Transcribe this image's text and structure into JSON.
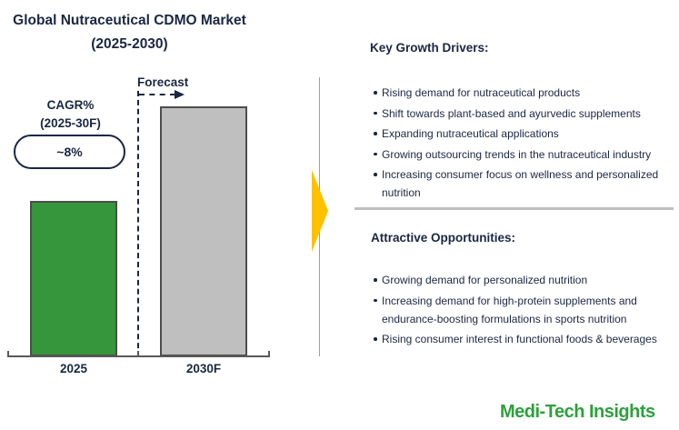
{
  "chart": {
    "title_line1": "Global Nutraceutical CDMO Market",
    "title_line2": "(2025-2030)",
    "cagr_label_line1": "CAGR%",
    "cagr_label_line2": "(2025-30F)",
    "cagr_value": "~8%",
    "forecast_label": "Forecast",
    "x_labels": [
      "2025",
      "2030F"
    ]
  },
  "chart_data": {
    "type": "bar",
    "title": "Global Nutraceutical CDMO Market (2025-2030)",
    "categories": [
      "2025",
      "2030F"
    ],
    "values": [
      62,
      100
    ],
    "y_scale": "relative bar heights; no numeric value labels or y-axis shown",
    "xlabel": "",
    "ylabel": "",
    "grid": false,
    "legend": false,
    "annotations": [
      "CAGR% (2025-30F): ~8%",
      "Forecast"
    ],
    "bar_colors": [
      "#35963B",
      "#BFBFBF"
    ]
  },
  "right_panel": {
    "sections": [
      {
        "heading": "Key Growth Drivers:",
        "bullets": [
          "Rising demand for nutraceutical products",
          "Shift towards plant-based and ayurvedic supplements",
          "Expanding nutraceutical applications",
          "Growing outsourcing trends in the nutraceutical industry",
          "Increasing consumer focus on wellness and personalized nutrition"
        ]
      },
      {
        "heading": "Attractive Opportunities:",
        "bullets": [
          "Growing demand for personalized nutrition",
          "Increasing demand for high-protein supplements and endurance-boosting formulations in sports nutrition",
          "Rising consumer interest in functional foods & beverages"
        ]
      }
    ]
  },
  "branding": {
    "logo_text": "Medi-Tech Insights"
  },
  "colors": {
    "text_navy": "#1A2742",
    "bar_2025_green": "#35963B",
    "bar_2030_gray": "#BFBFBF",
    "bar_border": "#4D4D4D",
    "axis_gray": "#595959",
    "gold_arrow": "#FFC000",
    "section_divider_gray": "#BFBFBF",
    "panel_line_gray": "#9E9E9E",
    "logo_green": "#2EA03C"
  }
}
